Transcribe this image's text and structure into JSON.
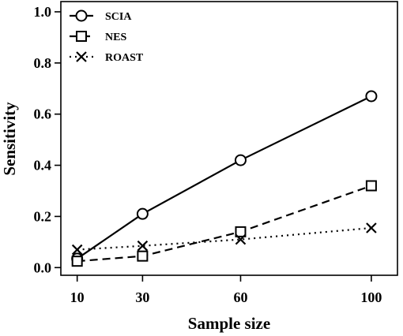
{
  "chart_data": {
    "type": "line",
    "title": "",
    "xlabel": "Sample size",
    "ylabel": "Sensitivity",
    "x": [
      10,
      30,
      60,
      100
    ],
    "x_tick_labels": [
      "10",
      "30",
      "60",
      "100"
    ],
    "y_ticks": [
      0.0,
      0.2,
      0.4,
      0.6,
      0.8,
      1.0
    ],
    "y_tick_labels": [
      "0.0",
      "0.2",
      "0.4",
      "0.6",
      "0.8",
      "1.0"
    ],
    "ylim": [
      -0.03,
      1.04
    ],
    "xlim": [
      5,
      108
    ],
    "grid": false,
    "legend_position": "top-left",
    "series": [
      {
        "name": "SCIA",
        "values": [
          0.035,
          0.21,
          0.42,
          0.67
        ],
        "marker": "circle",
        "line_style": "solid",
        "color": "#000000"
      },
      {
        "name": "NES",
        "values": [
          0.025,
          0.045,
          0.14,
          0.32
        ],
        "marker": "square",
        "line_style": "dashed",
        "color": "#000000"
      },
      {
        "name": "ROAST",
        "values": [
          0.07,
          0.085,
          0.11,
          0.155
        ],
        "marker": "x",
        "line_style": "dotted",
        "color": "#000000"
      }
    ]
  }
}
